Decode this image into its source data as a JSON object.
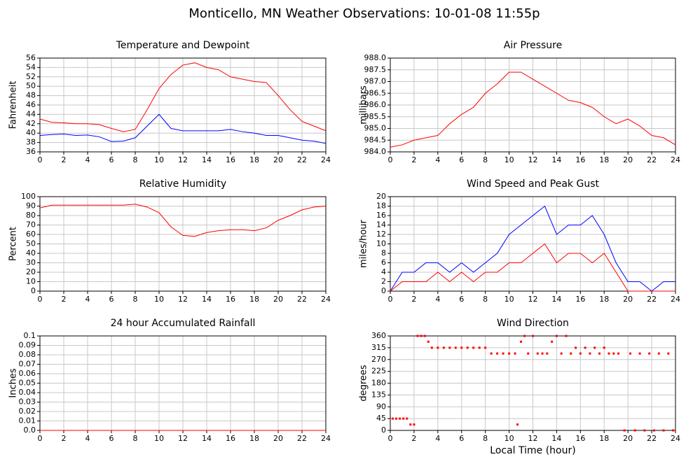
{
  "title": "Monticello, MN Weather Observations: 10-01-08 11:55p",
  "chart_data": [
    {
      "type": "line",
      "title": "Temperature and Dewpoint",
      "ylabel": "Fahrenheit",
      "x": [
        0,
        1,
        2,
        3,
        4,
        5,
        6,
        7,
        8,
        9,
        10,
        11,
        12,
        13,
        14,
        15,
        16,
        17,
        18,
        19,
        20,
        21,
        22,
        23,
        24
      ],
      "series": [
        {
          "color": "#ff0000",
          "values": [
            43,
            42.3,
            42.2,
            42,
            42,
            41.8,
            41,
            40.3,
            40.8,
            45,
            49.5,
            52.5,
            54.5,
            55,
            54,
            53.5,
            52,
            51.5,
            51,
            50.8,
            48,
            45,
            42.5,
            41.5,
            40.5
          ]
        },
        {
          "color": "#0000ff",
          "values": [
            39.5,
            39.7,
            39.8,
            39.5,
            39.6,
            39.2,
            38.2,
            38.3,
            39,
            41.5,
            44,
            41,
            40.5,
            40.5,
            40.5,
            40.5,
            40.8,
            40.3,
            40,
            39.5,
            39.5,
            39,
            38.5,
            38.3,
            37.8
          ]
        }
      ],
      "xlim": [
        0,
        24
      ],
      "xticks": [
        0,
        2,
        4,
        6,
        8,
        10,
        12,
        14,
        16,
        18,
        20,
        22,
        24
      ],
      "ylim": [
        36,
        56
      ],
      "yticks": [
        36,
        38,
        40,
        42,
        44,
        46,
        48,
        50,
        52,
        54,
        56
      ],
      "grid": true
    },
    {
      "type": "line",
      "title": "Air Pressure",
      "ylabel": "millibars",
      "x": [
        0,
        1,
        2,
        3,
        4,
        5,
        6,
        7,
        8,
        9,
        10,
        11,
        12,
        13,
        14,
        15,
        16,
        17,
        18,
        19,
        20,
        21,
        22,
        23,
        24
      ],
      "series": [
        {
          "color": "#ff0000",
          "values": [
            984.2,
            984.3,
            984.5,
            984.6,
            984.7,
            985.2,
            985.6,
            985.9,
            986.5,
            986.9,
            987.4,
            987.4,
            987.1,
            986.8,
            986.5,
            986.2,
            986.1,
            985.9,
            985.5,
            985.2,
            985.4,
            985.1,
            984.7,
            984.6,
            984.3
          ]
        }
      ],
      "xlim": [
        0,
        24
      ],
      "xticks": [
        0,
        2,
        4,
        6,
        8,
        10,
        12,
        14,
        16,
        18,
        20,
        22,
        24
      ],
      "ylim": [
        984,
        988
      ],
      "yticks": [
        {
          "value": 984,
          "label": "984.0"
        },
        984.5,
        {
          "value": 985,
          "label": "985.0"
        },
        985.5,
        {
          "value": 986,
          "label": "986.0"
        },
        986.5,
        {
          "value": 987,
          "label": "987.0"
        },
        987.5,
        {
          "value": 988,
          "label": "988.0"
        }
      ],
      "grid": true
    },
    {
      "type": "line",
      "title": "Relative Humidity",
      "ylabel": "Percent",
      "x": [
        0,
        1,
        2,
        3,
        4,
        5,
        6,
        7,
        8,
        9,
        10,
        11,
        12,
        13,
        14,
        15,
        16,
        17,
        18,
        19,
        20,
        21,
        22,
        23,
        24
      ],
      "series": [
        {
          "color": "#ff0000",
          "values": [
            88,
            91,
            91,
            91,
            91,
            91,
            91,
            91,
            92,
            89,
            83,
            68,
            59,
            58,
            62,
            64,
            65,
            65,
            64,
            67,
            75,
            80,
            86,
            89,
            90
          ]
        }
      ],
      "xlim": [
        0,
        24
      ],
      "xticks": [
        0,
        2,
        4,
        6,
        8,
        10,
        12,
        14,
        16,
        18,
        20,
        22,
        24
      ],
      "ylim": [
        0,
        100
      ],
      "yticks": [
        0,
        10,
        20,
        30,
        40,
        50,
        60,
        70,
        80,
        90,
        100
      ],
      "grid": true
    },
    {
      "type": "line",
      "title": "Wind Speed and Peak Gust",
      "ylabel": "miles/hour",
      "x": [
        0,
        1,
        2,
        3,
        4,
        5,
        6,
        7,
        8,
        9,
        10,
        11,
        12,
        13,
        14,
        15,
        16,
        17,
        18,
        19,
        20,
        21,
        22,
        23,
        24
      ],
      "series": [
        {
          "color": "#0000ff",
          "values": [
            0,
            4,
            4,
            6,
            6,
            4,
            6,
            4,
            6,
            8,
            12,
            14,
            16,
            18,
            12,
            14,
            14,
            16,
            12,
            6,
            2,
            2,
            0,
            2,
            2
          ]
        },
        {
          "color": "#ff0000",
          "values": [
            0,
            2,
            2,
            2,
            4,
            2,
            4,
            2,
            4,
            4,
            6,
            6,
            8,
            10,
            6,
            8,
            8,
            6,
            8,
            4,
            0,
            0,
            0,
            0,
            0
          ]
        }
      ],
      "xlim": [
        0,
        24
      ],
      "xticks": [
        0,
        2,
        4,
        6,
        8,
        10,
        12,
        14,
        16,
        18,
        20,
        22,
        24
      ],
      "ylim": [
        0,
        20
      ],
      "yticks": [
        0,
        2,
        4,
        6,
        8,
        10,
        12,
        14,
        16,
        18,
        20
      ],
      "grid": true
    },
    {
      "type": "line",
      "title": "24 hour Accumulated Rainfall",
      "ylabel": "Inches",
      "x": [
        0,
        24
      ],
      "series": [
        {
          "color": "#ff0000",
          "values": [
            0,
            0
          ]
        }
      ],
      "xlim": [
        0,
        24
      ],
      "xticks": [
        0,
        2,
        4,
        6,
        8,
        10,
        12,
        14,
        16,
        18,
        20,
        22,
        24
      ],
      "ylim": [
        0,
        0.1
      ],
      "yticks": [
        {
          "value": 0,
          "label": "0.0"
        },
        0.01,
        0.02,
        0.03,
        0.04,
        0.05,
        0.06,
        0.07,
        0.08,
        0.09,
        0.1
      ],
      "grid": true
    },
    {
      "type": "scatter",
      "title": "Wind Direction",
      "ylabel": "degrees",
      "xlabel": "Local Time (hour)",
      "x": [
        0.2,
        0.5,
        0.8,
        1.1,
        1.4,
        1.7,
        2.0,
        2.3,
        2.6,
        2.9,
        3.2,
        3.5,
        4,
        4.5,
        5,
        5.5,
        6,
        6.5,
        7,
        7.5,
        8,
        8.5,
        9,
        9.5,
        10,
        10.5,
        10.7,
        11,
        11.3,
        11.6,
        12,
        12.4,
        12.8,
        13.2,
        13.6,
        14,
        14.4,
        14.8,
        15.2,
        15.6,
        16,
        16.4,
        16.8,
        17.2,
        17.6,
        18,
        18.4,
        18.8,
        19.2,
        19.7,
        20.2,
        20.6,
        21,
        21.4,
        21.8,
        22.2,
        22.6,
        23,
        23.4,
        23.8
      ],
      "series": [
        {
          "color": "#ff0000",
          "values": [
            45,
            45,
            45,
            45,
            45,
            22.5,
            22.5,
            360,
            360,
            360,
            338,
            315,
            315,
            315,
            315,
            315,
            315,
            315,
            315,
            315,
            315,
            293,
            293,
            293,
            293,
            293,
            22.5,
            338,
            360,
            293,
            360,
            293,
            293,
            293,
            338,
            360,
            293,
            360,
            293,
            315,
            293,
            315,
            293,
            315,
            293,
            315,
            293,
            293,
            293,
            0,
            293,
            0,
            293,
            0,
            293,
            0,
            293,
            0,
            293,
            0
          ]
        }
      ],
      "xlim": [
        0,
        24
      ],
      "xticks": [
        0,
        2,
        4,
        6,
        8,
        10,
        12,
        14,
        16,
        18,
        20,
        22,
        24
      ],
      "ylim": [
        0,
        360
      ],
      "yticks": [
        0,
        45,
        90,
        135,
        180,
        225,
        270,
        315,
        360
      ],
      "grid": true
    }
  ]
}
